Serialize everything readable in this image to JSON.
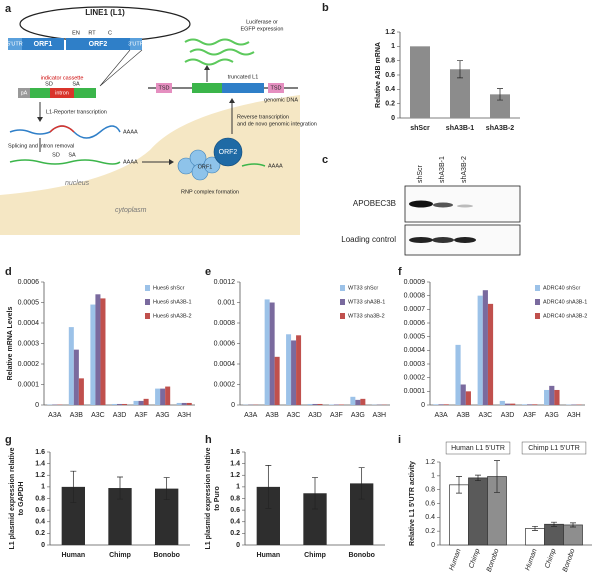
{
  "diagram": {
    "panel": "a",
    "l1": "LINE1 (L1)",
    "utr5": "5'UTR",
    "orf1": "ORF1",
    "orf2": "ORF2",
    "en": "EN",
    "rt": "RT",
    "c": "C",
    "utr3": "3'UTR",
    "cassette": "indicator cassette",
    "sd": "SD",
    "sa": "SA",
    "pa": "pA",
    "intron": "intron",
    "transcription": "L1-Reporter transcription",
    "polya": "AAAA",
    "splicing": "Splicing and intron removal",
    "nucleus": "nucleus",
    "cytoplasm": "cytoplasm",
    "rnp": "RNP complex formation",
    "rt_step_1": "Reverse transcription",
    "rt_step_2": "and de novo genomic integration",
    "expression_1": "Luciferase or",
    "expression_2": "EGFP expression",
    "truncated": "truncated L1",
    "genomic": "genomic DNA",
    "tsd": "TSD"
  },
  "blot": {
    "panel": "c",
    "lanes": [
      "shScr",
      "shA3B-1",
      "shA3B-2"
    ],
    "rows": [
      "APOBEC3B",
      "Loading control"
    ]
  },
  "chart_data": [
    {
      "panel": "b",
      "type": "bar",
      "ylabel": "Relative A3B mRNA",
      "categories": [
        "shScr",
        "shA3B-1",
        "shA3B-2"
      ],
      "values": [
        1,
        0.68,
        0.33
      ],
      "errors": [
        null,
        0.12,
        0.08
      ],
      "color": "#8c8c8c",
      "ylim": [
        0,
        1.2
      ],
      "yticks": [
        0,
        0.2,
        0.4,
        0.6,
        0.8,
        1,
        1.2
      ]
    },
    {
      "panel": "d",
      "type": "bar",
      "ylabel": "Relative mRNA Levels",
      "categories": [
        "A3A",
        "A3B",
        "A3C",
        "A3D",
        "A3F",
        "A3G",
        "A3H"
      ],
      "legend": "upper right",
      "series": [
        {
          "name": "Hues6 shScr",
          "color": "#9cc2e8",
          "values": [
            2e-06,
            0.00038,
            0.00049,
            5e-06,
            2e-05,
            8e-05,
            1e-05
          ]
        },
        {
          "name": "Hues6 shA3B-1",
          "color": "#7a6a9e",
          "values": [
            2e-06,
            0.00027,
            0.00054,
            5e-06,
            2e-05,
            8e-05,
            1e-05
          ]
        },
        {
          "name": "Hues6 shA3B-2",
          "color": "#c0504d",
          "values": [
            2e-06,
            0.00013,
            0.00052,
            5e-06,
            3e-05,
            9e-05,
            1e-05
          ]
        }
      ],
      "ylim": [
        0,
        0.0006
      ],
      "yticks": [
        0,
        0.0001,
        0.0002,
        0.0003,
        0.0004,
        0.0005,
        0.0006
      ]
    },
    {
      "panel": "e",
      "type": "bar",
      "categories": [
        "A3A",
        "A3B",
        "A3C",
        "A3D",
        "A3F",
        "A3G",
        "A3H"
      ],
      "legend": "upper right",
      "series": [
        {
          "name": "WT33 shScr",
          "color": "#9cc2e8",
          "values": [
            3e-06,
            0.00103,
            0.00069,
            1e-05,
            5e-06,
            8e-05,
            3e-06
          ]
        },
        {
          "name": "WT33 shA3B-1",
          "color": "#7a6a9e",
          "values": [
            3e-06,
            0.001,
            0.00063,
            1e-05,
            5e-06,
            5e-05,
            3e-06
          ]
        },
        {
          "name": "WT33 sha3B-2",
          "color": "#c0504d",
          "values": [
            3e-06,
            0.00047,
            0.00068,
            1e-05,
            5e-06,
            6e-05,
            3e-06
          ]
        }
      ],
      "ylim": [
        0,
        0.0012
      ],
      "yticks": [
        0,
        0.0002,
        0.0004,
        0.0006,
        0.0008,
        0.001,
        0.0012
      ]
    },
    {
      "panel": "f",
      "type": "bar",
      "categories": [
        "A3A",
        "A3B",
        "A3C",
        "A3D",
        "A3F",
        "A3G",
        "A3H"
      ],
      "legend": "upper right",
      "series": [
        {
          "name": "ADRC40 shScr",
          "color": "#9cc2e8",
          "values": [
            5e-06,
            0.00044,
            0.0008,
            3e-05,
            5e-06,
            0.00011,
            3e-06
          ]
        },
        {
          "name": "ADRC40 shA3B-1",
          "color": "#7a6a9e",
          "values": [
            5e-06,
            0.00015,
            0.00084,
            1e-05,
            5e-06,
            0.00014,
            3e-06
          ]
        },
        {
          "name": "ADRC40 shA3B-2",
          "color": "#c0504d",
          "values": [
            5e-06,
            0.0001,
            0.00074,
            1e-05,
            5e-06,
            0.00011,
            3e-06
          ]
        }
      ],
      "ylim": [
        0,
        0.0009
      ],
      "yticks": [
        0,
        0.0001,
        0.0002,
        0.0003,
        0.0004,
        0.0005,
        0.0006,
        0.0007,
        0.0008,
        0.0009
      ]
    },
    {
      "panel": "g",
      "type": "bar",
      "ylabel": [
        "L1 plasmid expression relative",
        "to GAPDH"
      ],
      "categories": [
        "Human",
        "Chimp",
        "Bonobo"
      ],
      "values": [
        1,
        0.98,
        0.97
      ],
      "errors": [
        0.27,
        0.19,
        0.19
      ],
      "color": "#2e2e2e",
      "ylim": [
        0,
        1.6
      ],
      "yticks": [
        0,
        0.2,
        0.4,
        0.6,
        0.8,
        1,
        1.2,
        1.4,
        1.6
      ]
    },
    {
      "panel": "h",
      "type": "bar",
      "ylabel": [
        "L1 plasmid expression relative",
        "to Puro"
      ],
      "categories": [
        "Human",
        "Chimp",
        "Bonobo"
      ],
      "values": [
        1,
        0.89,
        1.06
      ],
      "errors": [
        0.37,
        0.27,
        0.27
      ],
      "color": "#2e2e2e",
      "ylim": [
        0,
        1.6
      ],
      "yticks": [
        0,
        0.2,
        0.4,
        0.6,
        0.8,
        1,
        1.2,
        1.4,
        1.6
      ]
    },
    {
      "panel": "i",
      "type": "bar",
      "ylabel": "Relative L1 5'UTR activity",
      "categories": [
        "Human L1 5'UTR",
        "Chimp L1 5'UTR"
      ],
      "category_label_position": "top",
      "edgecolor": "#333333",
      "series": [
        {
          "name": "Human",
          "color": "#ffffff",
          "values": [
            0.87,
            0.24
          ],
          "errors": [
            0.12,
            0.03
          ]
        },
        {
          "name": "Chimp",
          "color": "#5a5a5a",
          "values": [
            0.97,
            0.3
          ],
          "errors": [
            0.04,
            0.03
          ]
        },
        {
          "name": "Bonobo",
          "color": "#8e8e8e",
          "values": [
            0.99,
            0.29
          ],
          "errors": [
            0.23,
            0.03
          ]
        }
      ],
      "ylim": [
        0,
        1.2
      ],
      "yticks": [
        0,
        0.2,
        0.4,
        0.6,
        0.8,
        1,
        1.2
      ]
    }
  ]
}
